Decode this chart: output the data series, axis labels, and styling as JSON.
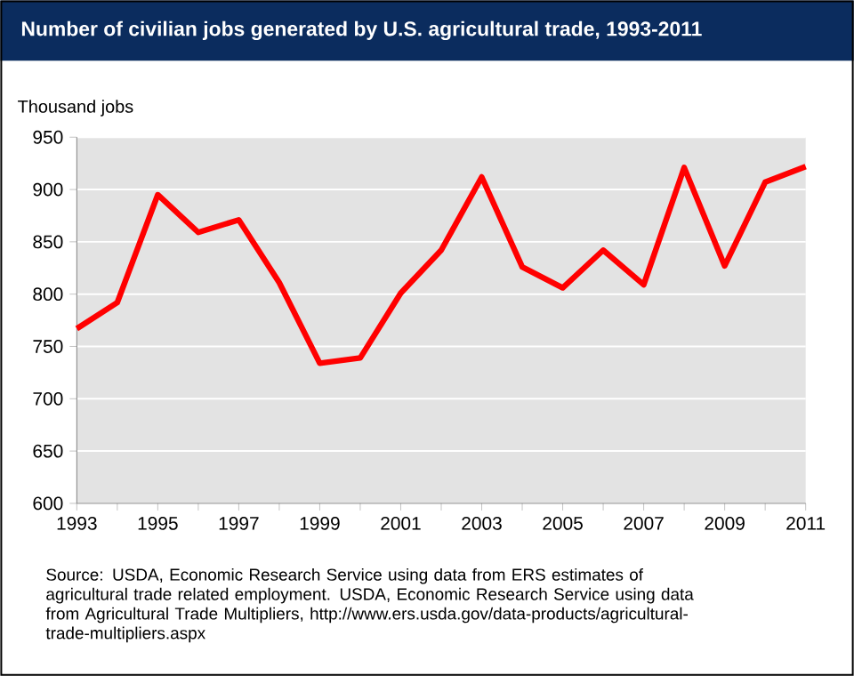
{
  "chart_data": {
    "type": "line",
    "title": "Number of civilian jobs generated by U.S. agricultural trade, 1993-2011",
    "ylabel": "Thousand jobs",
    "x": [
      1993,
      1994,
      1995,
      1996,
      1997,
      1998,
      1999,
      2000,
      2001,
      2002,
      2003,
      2004,
      2005,
      2006,
      2007,
      2008,
      2009,
      2010,
      2011
    ],
    "series": [
      {
        "color": "#ff0000",
        "values": [
          767,
          792,
          895,
          859,
          871,
          811,
          734,
          739,
          801,
          842,
          912,
          826,
          806,
          842,
          809,
          921,
          827,
          907,
          922
        ]
      }
    ],
    "xlim": [
      1993,
      2011
    ],
    "xticks": [
      1993,
      {
        "value": 1994,
        "label": null
      },
      1995,
      {
        "value": 1996,
        "label": null
      },
      1997,
      {
        "value": 1998,
        "label": null
      },
      1999,
      {
        "value": 2000,
        "label": null
      },
      2001,
      {
        "value": 2002,
        "label": null
      },
      2003,
      {
        "value": 2004,
        "label": null
      },
      2005,
      {
        "value": 2006,
        "label": null
      },
      2007,
      {
        "value": 2008,
        "label": null
      },
      2009,
      {
        "value": 2010,
        "label": null
      },
      2011
    ],
    "ylim": [
      600,
      950
    ],
    "yticks": [
      600,
      650,
      700,
      750,
      800,
      850,
      900,
      950
    ],
    "grid": "y",
    "annotations": [
      "Source: USDA, Economic Research Service using data from ERS estimates of agricultural trade related employment. USDA, Economic Research Service using data from Agricultural Trade Multipliers, http://www.ers.usda.gov/data-products/agricultural-trade-multipliers.aspx"
    ]
  }
}
